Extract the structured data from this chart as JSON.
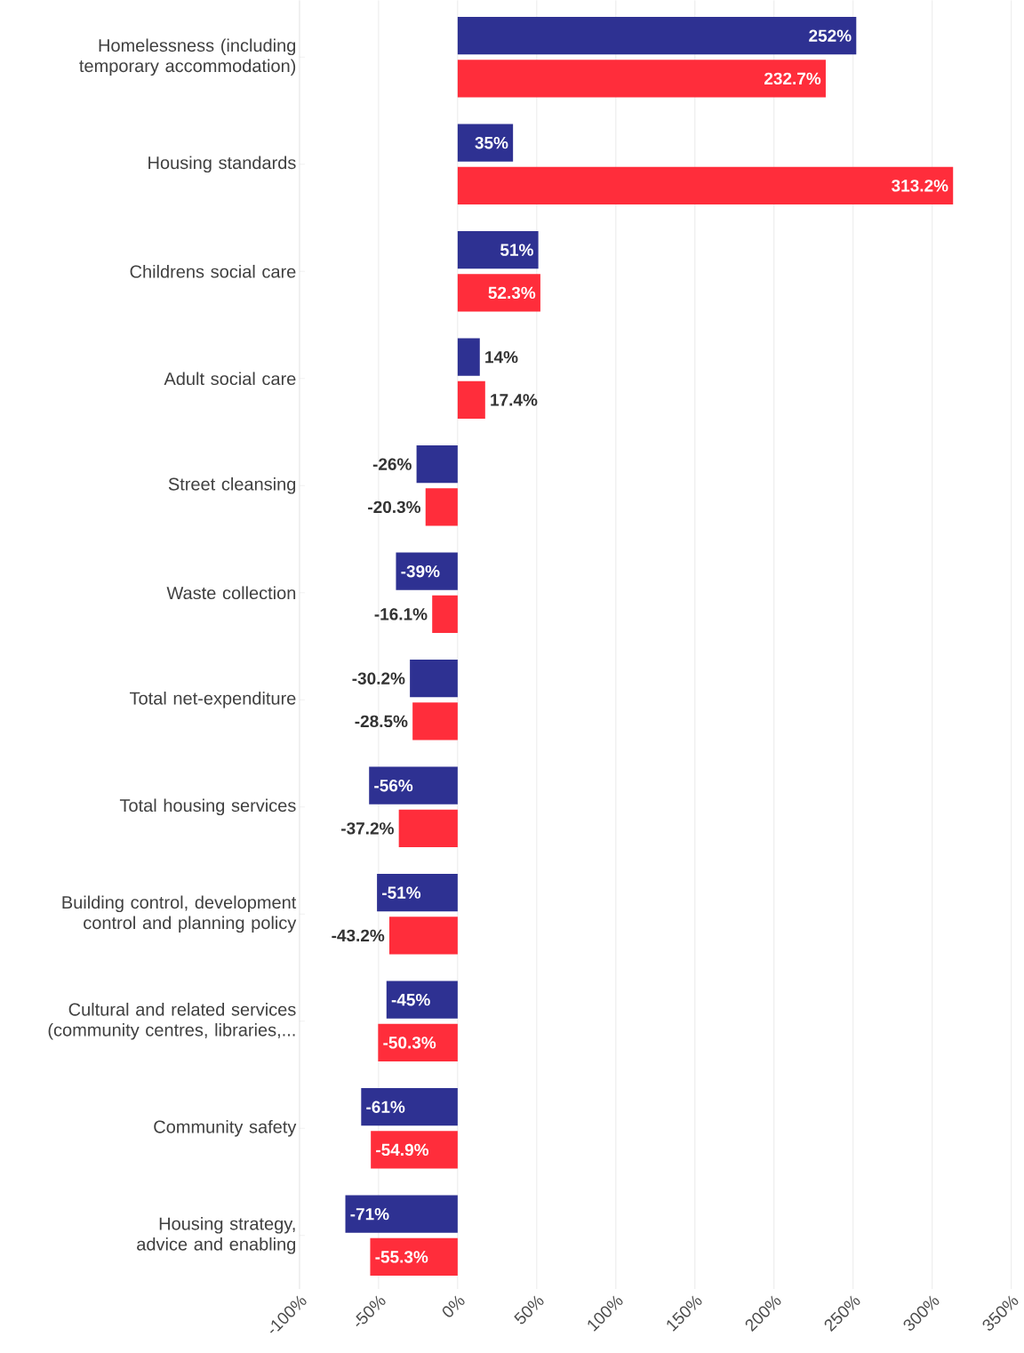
{
  "chart_data": {
    "type": "bar",
    "orientation": "horizontal",
    "grid": "x",
    "categories": [
      "Homelessness (including temporary accommodation)",
      "Housing standards",
      "Childrens social care",
      "Adult social care",
      "Street cleansing",
      "Waste collection",
      "Total net-expenditure",
      "Total housing services",
      "Building control, development control and planning policy",
      "Cultural and related services (community centres, libraries,...",
      "Community safety",
      "Housing strategy, advice and enabling"
    ],
    "series": [
      {
        "color": "#2e3192",
        "values": [
          252,
          35,
          51,
          14,
          -26,
          -39,
          -30.2,
          -56,
          -51,
          -45,
          -61,
          -71
        ],
        "value_labels": [
          "252%",
          "35%",
          "51%",
          "14%",
          "-26%",
          "-39%",
          "-30.2%",
          "-56%",
          "-51%",
          "-45%",
          "-61%",
          "-71%"
        ]
      },
      {
        "color": "#ff2d3b",
        "values": [
          232.7,
          313.2,
          52.3,
          17.4,
          -20.3,
          -16.1,
          -28.5,
          -37.2,
          -43.2,
          -50.3,
          -54.9,
          -55.3
        ],
        "value_labels": [
          "232.7%",
          "313.2%",
          "52.3%",
          "17.4%",
          "-20.3%",
          "-16.1%",
          "-28.5%",
          "-37.2%",
          "-43.2%",
          "-50.3%",
          "-54.9%",
          "-55.3%"
        ]
      }
    ],
    "xlim": [
      -100,
      350
    ],
    "xticks": [
      {
        "value": -100,
        "label": "-100%"
      },
      {
        "value": -50,
        "label": "-50%"
      },
      {
        "value": 0,
        "label": "0%"
      },
      {
        "value": 50,
        "label": "50%"
      },
      {
        "value": 100,
        "label": "100%"
      },
      {
        "value": 150,
        "label": "150%"
      },
      {
        "value": 200,
        "label": "200%"
      },
      {
        "value": 250,
        "label": "250%"
      },
      {
        "value": 300,
        "label": "300%"
      },
      {
        "value": 350,
        "label": "350%"
      }
    ]
  }
}
